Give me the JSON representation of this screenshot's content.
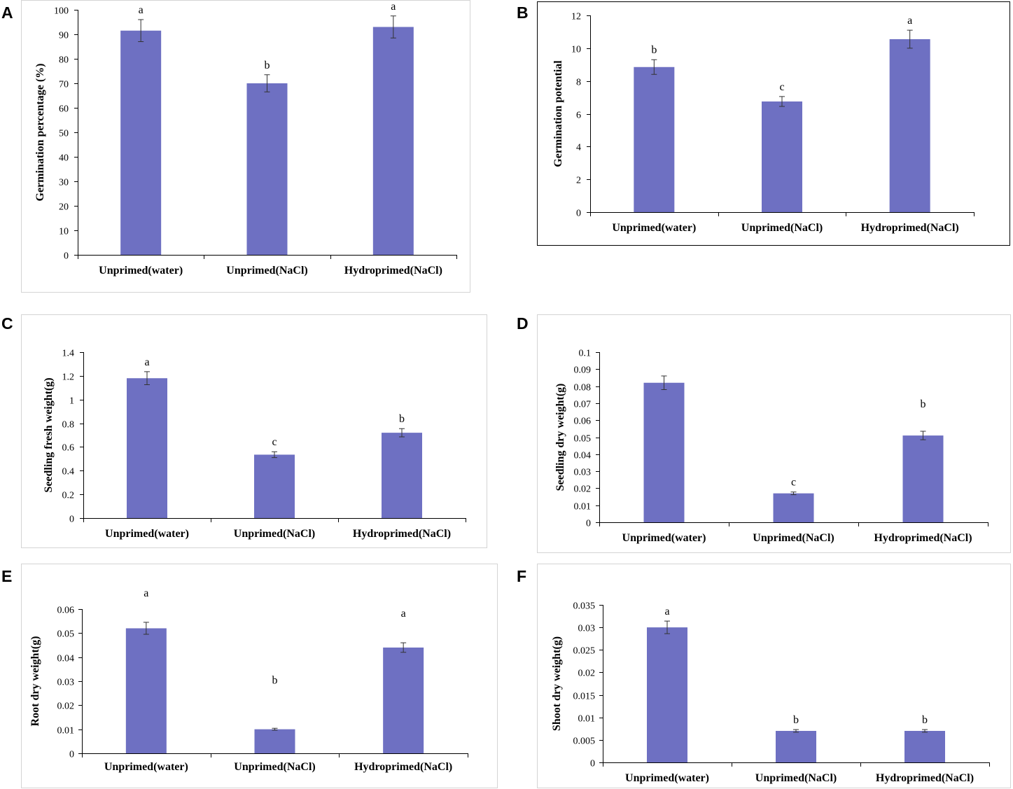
{
  "colors": {
    "bar": "#6e70c2",
    "error": "#333333"
  },
  "chart_data": [
    {
      "type": "bar",
      "panel": "A",
      "ylabel": "Germination percentage (%)",
      "xlabel": "",
      "ylim": [
        0,
        100
      ],
      "yticks": [
        "0",
        "10",
        "20",
        "30",
        "40",
        "50",
        "60",
        "70",
        "80",
        "90",
        "100"
      ],
      "categories": [
        "Unprimed(water)",
        "Unprimed(NaCl)",
        "Hydroprimed(NaCl)"
      ],
      "values": [
        91.5,
        70,
        93
      ],
      "errors": [
        4.5,
        3.5,
        4.5
      ],
      "labels": [
        "a",
        "b",
        "a"
      ]
    },
    {
      "type": "bar",
      "panel": "B",
      "ylabel": "Germination potential",
      "xlabel": "",
      "ylim": [
        0,
        12
      ],
      "yticks": [
        "0",
        "2",
        "4",
        "6",
        "8",
        "10",
        "12"
      ],
      "categories": [
        "Unprimed(water)",
        "Unprimed(NaCl)",
        "Hydroprimed(NaCl)"
      ],
      "values": [
        8.85,
        6.75,
        10.55
      ],
      "errors": [
        0.45,
        0.3,
        0.55
      ],
      "labels": [
        "b",
        "c",
        "a"
      ]
    },
    {
      "type": "bar",
      "panel": "C",
      "ylabel": "Seedling fresh weight(g)",
      "xlabel": "",
      "ylim": [
        0,
        1.4
      ],
      "yticks": [
        "0",
        "0.2",
        "0.4",
        "0.6",
        "0.8",
        "1",
        "1.2",
        "1.4"
      ],
      "categories": [
        "Unprimed(water)",
        "Unprimed(NaCl)",
        "Hydroprimed(NaCl)"
      ],
      "values": [
        1.18,
        0.535,
        0.72
      ],
      "errors": [
        0.055,
        0.025,
        0.035
      ],
      "labels": [
        "a",
        "c",
        "b"
      ]
    },
    {
      "type": "bar",
      "panel": "D",
      "ylabel": "Seedling dry weight(g)",
      "xlabel": "",
      "ylim": [
        0,
        0.1
      ],
      "yticks": [
        "0",
        "0.01",
        "0.02",
        "0.03",
        "0.04",
        "0.05",
        "0.06",
        "0.07",
        "0.08",
        "0.09",
        "0.1"
      ],
      "categories": [
        "Unprimed(water)",
        "Unprimed(NaCl)",
        "Hydroprimed(NaCl)"
      ],
      "values": [
        0.082,
        0.017,
        0.051
      ],
      "errors": [
        0.004,
        0.0008,
        0.0025
      ],
      "labels": [
        "",
        "c",
        "b"
      ]
    },
    {
      "type": "bar",
      "panel": "E",
      "ylabel": "Root dry weight(g)",
      "xlabel": "",
      "ylim": [
        0,
        0.06
      ],
      "yticks": [
        "0",
        "0.01",
        "0.02",
        "0.03",
        "0.04",
        "0.05",
        "0.06"
      ],
      "categories": [
        "Unprimed(water)",
        "Unprimed(NaCl)",
        "Hydroprimed(NaCl)"
      ],
      "values": [
        0.052,
        0.01,
        0.044
      ],
      "errors": [
        0.0025,
        0.0004,
        0.002
      ],
      "labels": [
        "a",
        "b",
        "a"
      ]
    },
    {
      "type": "bar",
      "panel": "F",
      "ylabel": "Shoot dry weight(g)",
      "xlabel": "",
      "ylim": [
        0,
        0.035
      ],
      "yticks": [
        "0",
        "0.005",
        "0.01",
        "0.015",
        "0.02",
        "0.025",
        "0.03",
        "0.035"
      ],
      "categories": [
        "Unprimed(water)",
        "Unprimed(NaCl)",
        "Hydroprimed(NaCl)"
      ],
      "values": [
        0.03,
        0.007,
        0.007
      ],
      "errors": [
        0.0014,
        0.0003,
        0.0003
      ],
      "labels": [
        "a",
        "b",
        "b"
      ]
    }
  ]
}
